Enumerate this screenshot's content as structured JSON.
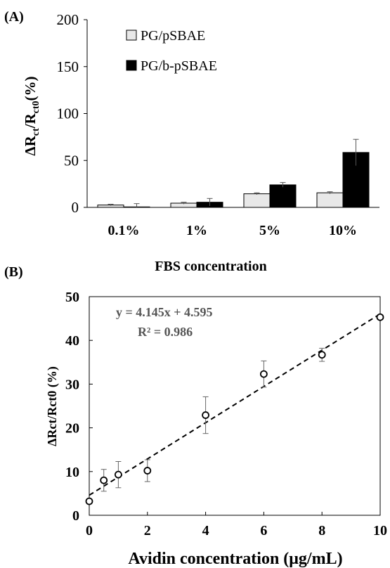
{
  "chart_data": [
    {
      "panel_label": "(A)",
      "type": "bar",
      "categories": [
        "0.1%",
        "1%",
        "5%",
        "10%"
      ],
      "series": [
        {
          "name": "PG/pSBAE",
          "values": [
            2.5,
            4.5,
            14.5,
            15.5
          ],
          "errors": [
            0.8,
            1.0,
            1.0,
            1.2
          ],
          "color": "#e8e8e8"
        },
        {
          "name": "PG/b-pSBAE",
          "values": [
            0.5,
            5.5,
            24.0,
            58.5
          ],
          "errors": [
            3.5,
            4.0,
            2.5,
            14.0
          ],
          "color": "#000000"
        }
      ],
      "title": "",
      "xlabel": "FBS concentration",
      "ylabel_main": "ΔR",
      "ylabel_sub1": "ct",
      "ylabel_mid": "/R",
      "ylabel_sub2": "ct0",
      "ylabel_tail": "(%)",
      "ylim": [
        0,
        200
      ],
      "yticks": [
        0,
        50,
        100,
        150,
        200
      ],
      "legend_position": "top-left",
      "grid": false
    },
    {
      "panel_label": "(B)",
      "type": "scatter",
      "x": [
        0,
        0.5,
        1,
        2,
        4,
        6,
        8,
        10
      ],
      "y": [
        3.2,
        8.0,
        9.3,
        10.2,
        22.9,
        32.3,
        36.7,
        45.3
      ],
      "errors": [
        0.0,
        2.5,
        3.0,
        2.5,
        4.2,
        3.0,
        1.5,
        0.0
      ],
      "fit": {
        "slope": 4.145,
        "intercept": 4.595,
        "equation": "y = 4.145x + 4.595",
        "r2_label": "R² = 0.986",
        "style": "dashed"
      },
      "title": "",
      "xlabel": "Avidin concentration (μg/mL)",
      "ylabel": "ΔRct/Rct0 (%)",
      "xlim": [
        0,
        10
      ],
      "ylim": [
        0,
        50
      ],
      "xticks": [
        0,
        2,
        4,
        6,
        8,
        10
      ],
      "yticks": [
        0,
        10,
        20,
        30,
        40,
        50
      ],
      "grid": false
    }
  ]
}
